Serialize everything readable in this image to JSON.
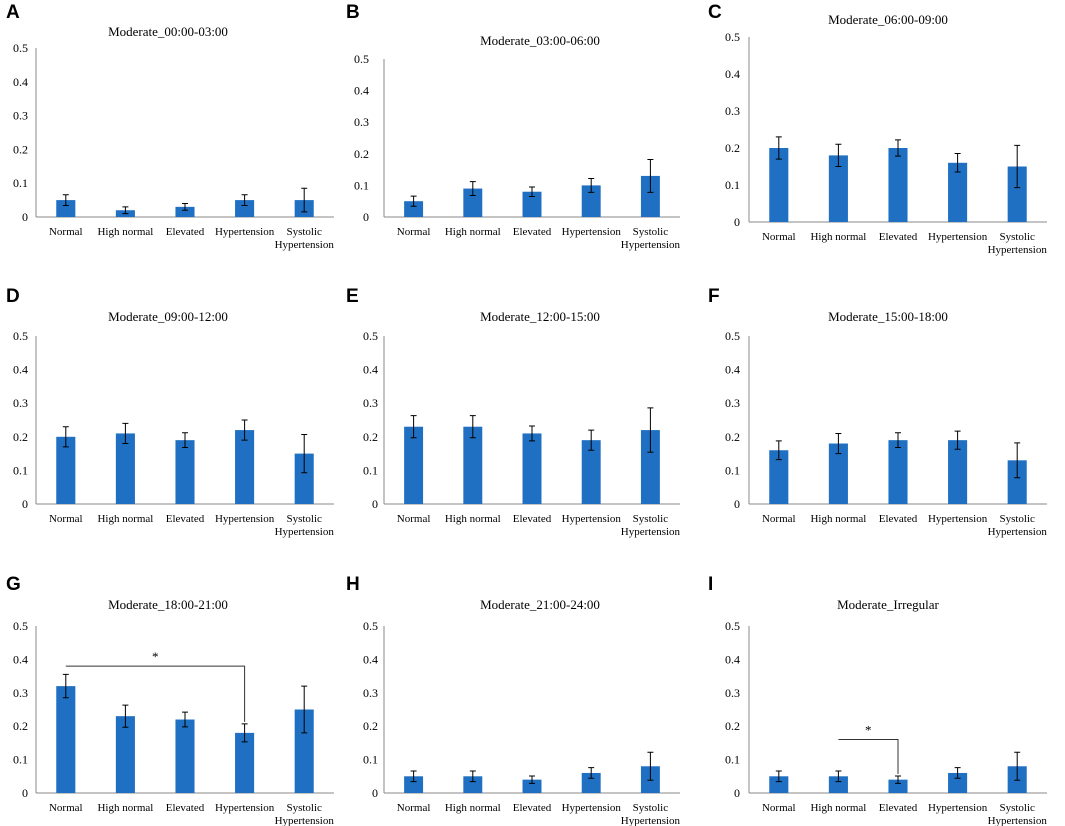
{
  "figure": {
    "colors": {
      "bar": "#1f6fc2",
      "axis": "#8a8a8a",
      "text": "#000000",
      "error": "#000000"
    }
  },
  "chart_data": [
    {
      "panel": "A",
      "type": "bar",
      "title": "Moderate_00:00-03:00",
      "categories": [
        "Normal",
        "High normal",
        "Elevated",
        "Hypertension",
        "Systolic Hypertension"
      ],
      "values": [
        0.05,
        0.02,
        0.03,
        0.05,
        0.05
      ],
      "errors": [
        0.016,
        0.01,
        0.01,
        0.016,
        0.035
      ],
      "yticks": [
        "0",
        "0.1",
        "0.2",
        "0.3",
        "0.4",
        "0.5"
      ],
      "ylim": [
        0,
        0.5
      ],
      "xlabel": "",
      "ylabel": "",
      "significance": []
    },
    {
      "panel": "B",
      "type": "bar",
      "title": "Moderate_03:00-06:00",
      "categories": [
        "Normal",
        "High normal",
        "Elevated",
        "Hypertension",
        "Systolic Hypertension"
      ],
      "values": [
        0.05,
        0.09,
        0.08,
        0.1,
        0.13
      ],
      "errors": [
        0.016,
        0.022,
        0.015,
        0.022,
        0.052
      ],
      "yticks": [
        "0",
        "0.1",
        "0.2",
        "0.3",
        "0.4",
        "0.5"
      ],
      "ylim": [
        0,
        0.5
      ],
      "xlabel": "",
      "ylabel": "",
      "significance": []
    },
    {
      "panel": "C",
      "type": "bar",
      "title": "Moderate_06:00-09:00",
      "categories": [
        "Normal",
        "High normal",
        "Elevated",
        "Hypertension",
        "Systolic Hypertension"
      ],
      "values": [
        0.2,
        0.18,
        0.2,
        0.16,
        0.15
      ],
      "errors": [
        0.03,
        0.03,
        0.022,
        0.025,
        0.057
      ],
      "yticks": [
        "0",
        "0.1",
        "0.2",
        "0.3",
        "0.4",
        "0.5"
      ],
      "ylim": [
        0,
        0.5
      ],
      "xlabel": "",
      "ylabel": "",
      "significance": []
    },
    {
      "panel": "D",
      "type": "bar",
      "title": "Moderate_09:00-12:00",
      "categories": [
        "Normal",
        "High normal",
        "Elevated",
        "Hypertension",
        "Systolic Hypertension"
      ],
      "values": [
        0.2,
        0.21,
        0.19,
        0.22,
        0.15
      ],
      "errors": [
        0.03,
        0.03,
        0.022,
        0.03,
        0.057
      ],
      "yticks": [
        "0",
        "0.1",
        "0.2",
        "0.3",
        "0.4",
        "0.5"
      ],
      "ylim": [
        0,
        0.5
      ],
      "xlabel": "",
      "ylabel": "",
      "significance": []
    },
    {
      "panel": "E",
      "type": "bar",
      "title": "Moderate_12:00-15:00",
      "categories": [
        "Normal",
        "High normal",
        "Elevated",
        "Hypertension",
        "Systolic Hypertension"
      ],
      "values": [
        0.23,
        0.23,
        0.21,
        0.19,
        0.22
      ],
      "errors": [
        0.033,
        0.033,
        0.022,
        0.03,
        0.066
      ],
      "yticks": [
        "0",
        "0.1",
        "0.2",
        "0.3",
        "0.4",
        "0.5"
      ],
      "ylim": [
        0,
        0.5
      ],
      "xlabel": "",
      "ylabel": "",
      "significance": []
    },
    {
      "panel": "F",
      "type": "bar",
      "title": "Moderate_15:00-18:00",
      "categories": [
        "Normal",
        "High normal",
        "Elevated",
        "Hypertension",
        "Systolic Hypertension"
      ],
      "values": [
        0.16,
        0.18,
        0.19,
        0.19,
        0.13
      ],
      "errors": [
        0.028,
        0.03,
        0.022,
        0.027,
        0.052
      ],
      "yticks": [
        "0",
        "0.1",
        "0.2",
        "0.3",
        "0.4",
        "0.5"
      ],
      "ylim": [
        0,
        0.5
      ],
      "xlabel": "",
      "ylabel": "",
      "significance": []
    },
    {
      "panel": "G",
      "type": "bar",
      "title": "Moderate_18:00-21:00",
      "categories": [
        "Normal",
        "High normal",
        "Elevated",
        "Hypertension",
        "Systolic Hypertension"
      ],
      "values": [
        0.32,
        0.23,
        0.22,
        0.18,
        0.25
      ],
      "errors": [
        0.035,
        0.033,
        0.022,
        0.027,
        0.07
      ],
      "yticks": [
        "0",
        "0.1",
        "0.2",
        "0.3",
        "0.4",
        "0.5"
      ],
      "ylim": [
        0,
        0.5
      ],
      "xlabel": "",
      "ylabel": "",
      "significance": [
        {
          "from": 0,
          "to": 3,
          "level": 0.38,
          "label": "*"
        }
      ]
    },
    {
      "panel": "H",
      "type": "bar",
      "title": "Moderate_21:00-24:00",
      "categories": [
        "Normal",
        "High normal",
        "Elevated",
        "Hypertension",
        "Systolic Hypertension"
      ],
      "values": [
        0.05,
        0.05,
        0.04,
        0.06,
        0.08
      ],
      "errors": [
        0.016,
        0.016,
        0.011,
        0.016,
        0.042
      ],
      "yticks": [
        "0",
        "0.1",
        "0.2",
        "0.3",
        "0.4",
        "0.5"
      ],
      "ylim": [
        0,
        0.5
      ],
      "xlabel": "",
      "ylabel": "",
      "significance": []
    },
    {
      "panel": "I",
      "type": "bar",
      "title": "Moderate_Irregular",
      "categories": [
        "Normal",
        "High normal",
        "Elevated",
        "Hypertension",
        "Systolic Hypertension"
      ],
      "values": [
        0.05,
        0.05,
        0.04,
        0.06,
        0.08
      ],
      "errors": [
        0.016,
        0.016,
        0.011,
        0.016,
        0.042
      ],
      "yticks": [
        "0",
        "0.1",
        "0.2",
        "0.3",
        "0.4",
        "0.5"
      ],
      "ylim": [
        0,
        0.5
      ],
      "xlabel": "",
      "ylabel": "",
      "significance": [
        {
          "from": 1,
          "to": 2,
          "level": 0.16,
          "label": "*"
        }
      ]
    }
  ]
}
